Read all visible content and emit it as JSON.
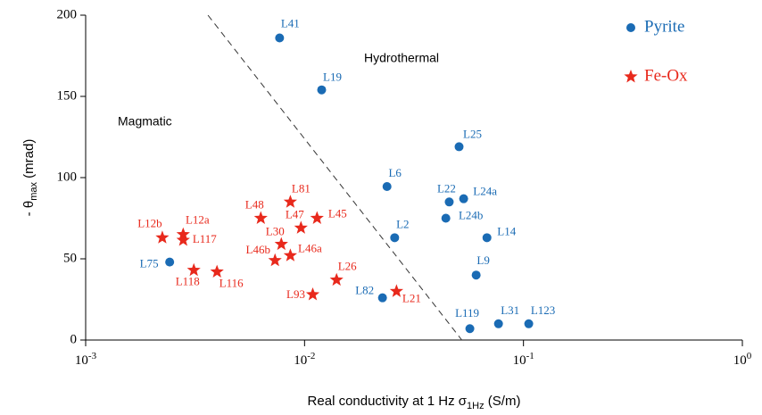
{
  "chart_data": {
    "type": "scatter",
    "xlabel": [
      "Real conductivity at 1 Hz σ",
      "1Hz",
      " (S/m)"
    ],
    "ylabel": [
      "- θ",
      "max",
      "  (mrad)"
    ],
    "x_log": true,
    "xlim": [
      0.001,
      1
    ],
    "ylim": [
      0,
      200
    ],
    "xticks": [
      {
        "value": 0.001,
        "label": "10",
        "exponent": "-3"
      },
      {
        "value": 0.01,
        "label": "10",
        "exponent": "-2"
      },
      {
        "value": 0.1,
        "label": "10",
        "exponent": "-1"
      },
      {
        "value": 1,
        "label": "10",
        "exponent": "0"
      }
    ],
    "yticks": [
      0,
      50,
      100,
      150,
      200
    ],
    "annotations": [
      "Magmatic",
      "Hydrothermal"
    ],
    "divider_line": {
      "x": [
        0.00362,
        0.0523
      ],
      "y": [
        200,
        0
      ]
    },
    "series": [
      {
        "name": "Pyrite",
        "color": "#1a6bb4",
        "marker": "circle",
        "labels": [
          "L41",
          "L19",
          "L25",
          "L6",
          "L22",
          "L24a",
          "L24b",
          "L2",
          "L14",
          "L75",
          "L9",
          "L82",
          "L119",
          "L31",
          "L123"
        ],
        "x": [
          0.00769,
          0.01197,
          0.0508,
          0.0238,
          0.0458,
          0.0533,
          0.0442,
          0.0258,
          0.0681,
          0.00242,
          0.0608,
          0.0227,
          0.0569,
          0.0769,
          0.1057
        ],
        "values": [
          186,
          154,
          119,
          94.5,
          85,
          87,
          75,
          63,
          63,
          48,
          40,
          26,
          7,
          10,
          10
        ]
      },
      {
        "name": "Fe-Ox",
        "color": "#e8291c",
        "marker": "star",
        "labels": [
          "L12b",
          "L12a",
          "L117",
          "L118",
          "L116",
          "L48",
          "L81",
          "L47",
          "L45",
          "L30",
          "L46b",
          "L46a",
          "L26",
          "L93",
          "L21"
        ],
        "x": [
          0.00224,
          0.00279,
          0.00279,
          0.00312,
          0.00398,
          0.00631,
          0.00861,
          0.00963,
          0.0114,
          0.00783,
          0.00733,
          0.00861,
          0.014,
          0.0109,
          0.0263
        ],
        "values": [
          63,
          65,
          61.5,
          43,
          42,
          75,
          85,
          69,
          75,
          59,
          49,
          52,
          37,
          28,
          30
        ]
      }
    ]
  }
}
